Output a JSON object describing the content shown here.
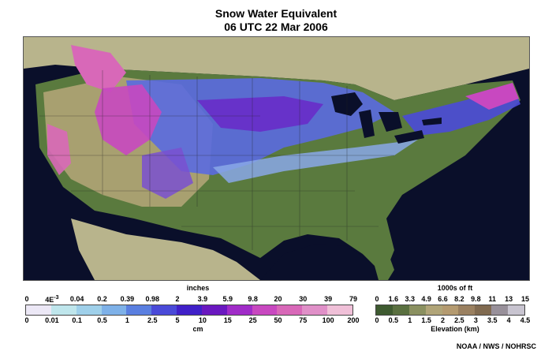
{
  "title": "Snow Water Equivalent",
  "subtitle": "06 UTC 22 Mar 2006",
  "snow_legend": {
    "top_unit": "inches",
    "bottom_unit": "cm",
    "inches_ticks": [
      "0",
      "4E-3",
      "0.04",
      "0.2",
      "0.39",
      "0.98",
      "2",
      "3.9",
      "5.9",
      "9.8",
      "20",
      "30",
      "39",
      "79"
    ],
    "cm_ticks": [
      "0",
      "0.01",
      "0.1",
      "0.5",
      "1",
      "2.5",
      "5",
      "10",
      "15",
      "25",
      "50",
      "75",
      "100",
      "200"
    ],
    "colors": [
      "#ece8f6",
      "#bfe6ec",
      "#9fd0ea",
      "#7eb1e8",
      "#5a7fe0",
      "#4a4ad8",
      "#4020c8",
      "#6a18c0",
      "#a02cc8",
      "#c848c0",
      "#d868b8",
      "#e090c8",
      "#f0c0d8"
    ]
  },
  "elevation_legend": {
    "top_unit": "1000s of ft",
    "bottom_unit": "Elevation (km)",
    "ft_ticks": [
      "0",
      "1.6",
      "3.3",
      "4.9",
      "6.6",
      "8.2",
      "9.8",
      "11",
      "13",
      "15"
    ],
    "km_ticks": [
      "0",
      "0.5",
      "1",
      "1.5",
      "2",
      "2.5",
      "3",
      "3.5",
      "4",
      "4.5"
    ],
    "colors": [
      "#3e5a30",
      "#5a7040",
      "#8a9060",
      "#b0a478",
      "#b49a70",
      "#9a8060",
      "#806a50",
      "#98909a",
      "#c8c4d0"
    ]
  },
  "credit": "NOAA / NWS / NOHRSC"
}
